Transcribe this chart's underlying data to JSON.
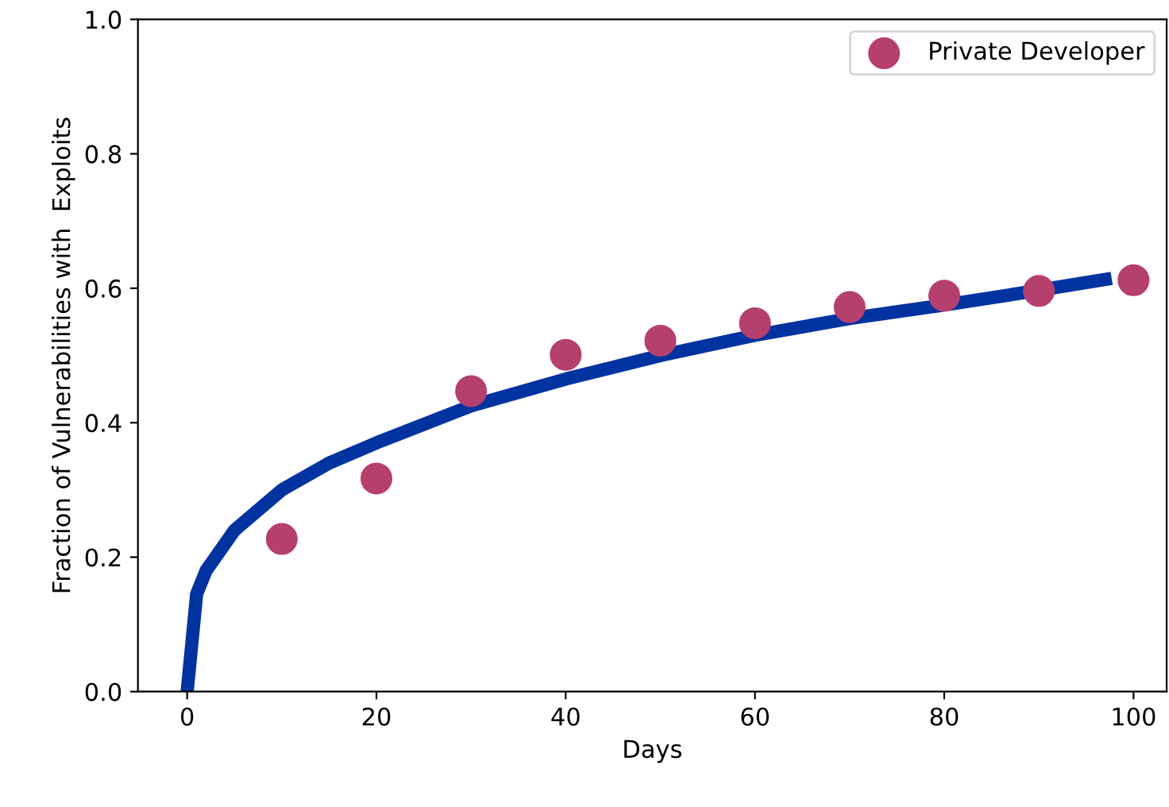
{
  "chart_data": {
    "type": "line",
    "xlabel": "Days",
    "ylabel": "Fraction of Vulnerabilities with  Exploits",
    "xlim": [
      -5.2,
      103.5
    ],
    "ylim": [
      0,
      1
    ],
    "xticks": [
      0,
      20,
      40,
      60,
      80,
      100
    ],
    "yticks": [
      {
        "value": 0,
        "label": "0.0"
      },
      0.2,
      0.4,
      0.6,
      0.8,
      {
        "value": 1,
        "label": "1.0"
      }
    ],
    "legend": "top right",
    "grid": false,
    "series": [
      {
        "color": "#0033a0",
        "x": [
          0,
          1,
          2,
          5,
          10,
          15,
          20,
          30,
          40,
          50,
          60,
          70,
          80,
          86,
          97
        ],
        "values": [
          0,
          0.145,
          0.18,
          0.24,
          0.3,
          0.34,
          0.37,
          0.425,
          0.465,
          0.5,
          0.53,
          0.555,
          0.575,
          0.588,
          0.613
        ]
      },
      {
        "type": "scatter",
        "name": "Private Developer",
        "color": "#b5406e",
        "marker": "circle",
        "x": [
          10,
          20,
          30,
          40,
          50,
          60,
          70,
          80,
          90,
          100
        ],
        "values": [
          0.227,
          0.317,
          0.447,
          0.501,
          0.522,
          0.548,
          0.572,
          0.589,
          0.596,
          0.612
        ]
      }
    ]
  }
}
